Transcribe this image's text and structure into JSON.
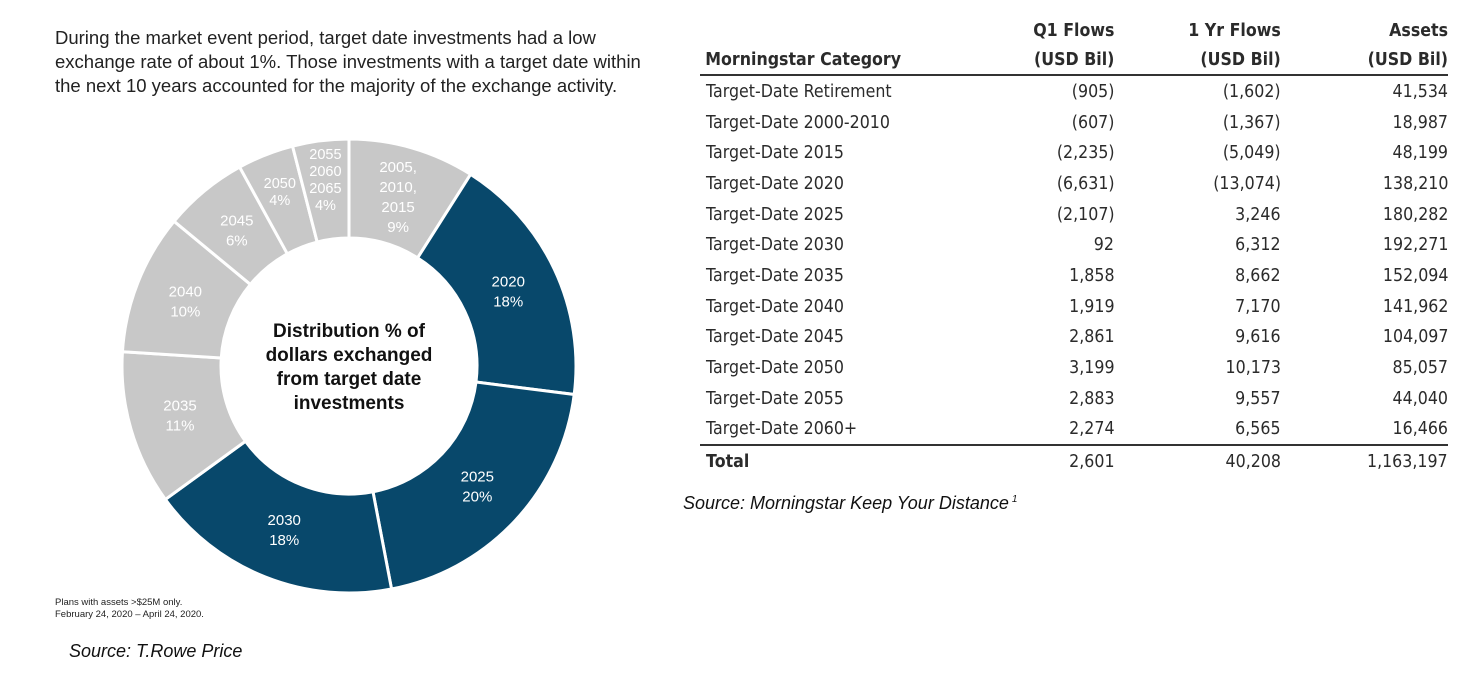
{
  "intro_text": "During the market event period, target date investments had a low exchange rate of about 1%. Those investments with a target date within the next 10 years accounted for the majority of the exchange activity.",
  "footnote": [
    "Plans with assets >$25M only.",
    "February 24, 2020 – April 24, 2020."
  ],
  "source_left": "Source: T.Rowe Price",
  "source_right": "Source: Morningstar Keep Your Distance",
  "source_right_sup": "1",
  "colors": {
    "highlight": "#08486b",
    "muted": "#c8c8c8",
    "label_light": "#ffffff"
  },
  "chart_data": {
    "type": "pie",
    "donut": true,
    "center_label": [
      "Distribution % of",
      "dollars exchanged",
      "from target date",
      "investments"
    ],
    "slices": [
      {
        "label": [
          "2005,",
          "2010,",
          "2015"
        ],
        "value": 9,
        "value_label": "9%",
        "highlight": false
      },
      {
        "label": [
          "2020"
        ],
        "value": 18,
        "value_label": "18%",
        "highlight": true
      },
      {
        "label": [
          "2025"
        ],
        "value": 20,
        "value_label": "20%",
        "highlight": true
      },
      {
        "label": [
          "2030"
        ],
        "value": 18,
        "value_label": "18%",
        "highlight": true
      },
      {
        "label": [
          "2035"
        ],
        "value": 11,
        "value_label": "11%",
        "highlight": false
      },
      {
        "label": [
          "2040"
        ],
        "value": 10,
        "value_label": "10%",
        "highlight": false
      },
      {
        "label": [
          "2045"
        ],
        "value": 6,
        "value_label": "6%",
        "highlight": false
      },
      {
        "label": [
          "2050"
        ],
        "value": 4,
        "value_label": "4%",
        "highlight": false
      },
      {
        "label": [
          "2055",
          "2060",
          "2065"
        ],
        "value": 4,
        "value_label": "4%",
        "highlight": false
      }
    ]
  },
  "table": {
    "headers": [
      {
        "line1": "",
        "line2": "Morningstar Category"
      },
      {
        "line1": "Q1 Flows",
        "line2": "(USD Bil)"
      },
      {
        "line1": "1 Yr Flows",
        "line2": "(USD Bil)"
      },
      {
        "line1": "Assets",
        "line2": "(USD Bil)"
      }
    ],
    "rows": [
      [
        "Target-Date Retirement",
        "(905)",
        "(1,602)",
        "41,534"
      ],
      [
        "Target-Date 2000-2010",
        "(607)",
        "(1,367)",
        "18,987"
      ],
      [
        "Target-Date 2015",
        "(2,235)",
        "(5,049)",
        "48,199"
      ],
      [
        "Target-Date 2020",
        "(6,631)",
        "(13,074)",
        "138,210"
      ],
      [
        "Target-Date 2025",
        "(2,107)",
        "3,246",
        "180,282"
      ],
      [
        "Target-Date 2030",
        "92",
        "6,312",
        "192,271"
      ],
      [
        "Target-Date 2035",
        "1,858",
        "8,662",
        "152,094"
      ],
      [
        "Target-Date 2040",
        "1,919",
        "7,170",
        "141,962"
      ],
      [
        "Target-Date 2045",
        "2,861",
        "9,616",
        "104,097"
      ],
      [
        "Target-Date 2050",
        "3,199",
        "10,173",
        "85,057"
      ],
      [
        "Target-Date 2055",
        "2,883",
        "9,557",
        "44,040"
      ],
      [
        "Target-Date 2060+",
        "2,274",
        "6,565",
        "16,466"
      ]
    ],
    "total": [
      "Total",
      "2,601",
      "40,208",
      "1,163,197"
    ]
  }
}
